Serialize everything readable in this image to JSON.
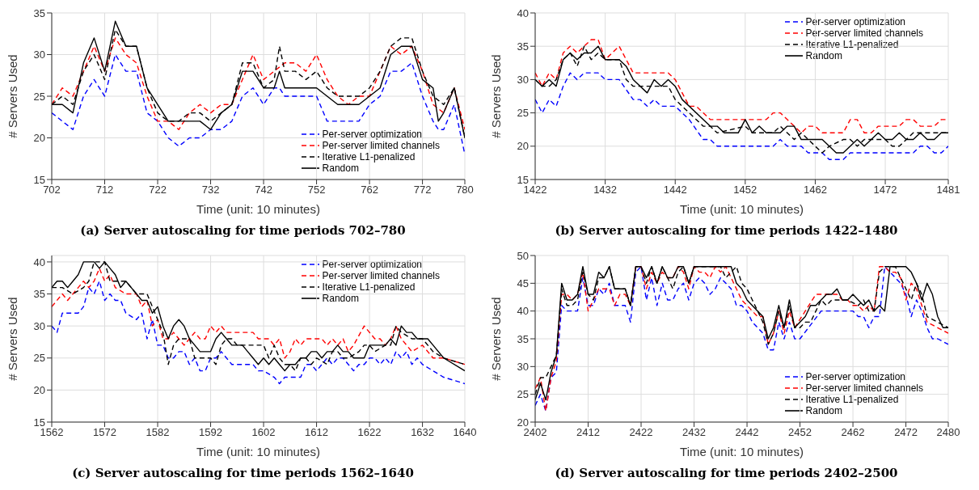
{
  "chart_data": [
    {
      "type": "line",
      "title": "(a) Server autoscaling for time periods 702–780",
      "xlabel": "Time (unit: 10 minutes)",
      "ylabel": "# Servers Used",
      "xlim": [
        702,
        780
      ],
      "xticks": [
        702,
        712,
        722,
        732,
        742,
        752,
        762,
        772,
        780
      ],
      "ylim": [
        15,
        35
      ],
      "yticks": [
        15,
        20,
        25,
        30,
        35
      ],
      "grid": true,
      "legend": "bottom right",
      "series": [
        {
          "name": "Per-server optimization",
          "color": "#0000ff",
          "line_style": "dashed",
          "x": [
            702,
            704,
            706,
            708,
            710,
            712,
            714,
            716,
            718,
            720,
            722,
            724,
            726,
            728,
            730,
            732,
            734,
            736,
            738,
            740,
            742,
            744,
            745,
            746,
            748,
            750,
            752,
            754,
            756,
            758,
            760,
            762,
            764,
            766,
            768,
            770,
            772,
            774,
            775,
            776,
            778,
            780
          ],
          "values": [
            23,
            22,
            21,
            25,
            27,
            25,
            30,
            28,
            28,
            23,
            22,
            20,
            19,
            20,
            20,
            21,
            21,
            22,
            25,
            26,
            24,
            26,
            26,
            25,
            25,
            25,
            25,
            22,
            22,
            22,
            22,
            24,
            25,
            28,
            28,
            29,
            25,
            22,
            21,
            21,
            24,
            18
          ]
        },
        {
          "name": "Per-server limited channels",
          "color": "#ff0000",
          "line_style": "dashed",
          "x": [
            702,
            704,
            706,
            708,
            710,
            712,
            714,
            716,
            718,
            720,
            722,
            724,
            726,
            728,
            730,
            732,
            734,
            736,
            738,
            740,
            742,
            744,
            746,
            748,
            750,
            752,
            754,
            756,
            758,
            760,
            762,
            764,
            766,
            768,
            770,
            772,
            774,
            776,
            778,
            780
          ],
          "values": [
            24,
            26,
            25,
            28,
            31,
            28,
            32,
            30,
            29,
            25,
            22,
            22,
            21,
            23,
            24,
            23,
            24,
            24,
            27,
            30,
            27,
            28,
            29,
            29,
            28,
            30,
            27,
            25,
            24,
            25,
            25,
            28,
            31,
            30,
            31,
            28,
            24,
            23,
            26,
            21
          ]
        },
        {
          "name": "Iterative L1-penalized",
          "color": "#000000",
          "line_style": "dashed",
          "x": [
            702,
            704,
            706,
            708,
            710,
            712,
            714,
            716,
            718,
            720,
            722,
            724,
            726,
            728,
            730,
            732,
            734,
            736,
            738,
            740,
            742,
            744,
            745,
            746,
            748,
            750,
            752,
            754,
            756,
            758,
            760,
            762,
            764,
            766,
            768,
            770,
            772,
            774,
            776,
            778,
            780
          ],
          "values": [
            24,
            25,
            24,
            28,
            30,
            27,
            33,
            31,
            31,
            26,
            23,
            22,
            22,
            23,
            23,
            22,
            23,
            24,
            29,
            29,
            26,
            27,
            31,
            28,
            28,
            27,
            28,
            26,
            25,
            25,
            25,
            26,
            28,
            31,
            32,
            32,
            28,
            25,
            24,
            26,
            20
          ]
        },
        {
          "name": "Random",
          "color": "#000000",
          "line_style": "solid",
          "x": [
            702,
            704,
            706,
            708,
            710,
            712,
            714,
            716,
            718,
            720,
            722,
            724,
            726,
            728,
            730,
            732,
            734,
            736,
            738,
            740,
            742,
            744,
            745,
            746,
            748,
            750,
            752,
            754,
            756,
            758,
            760,
            762,
            764,
            766,
            768,
            770,
            772,
            774,
            775,
            776,
            778,
            780
          ],
          "values": [
            24,
            24,
            23,
            29,
            32,
            28,
            34,
            31,
            31,
            26,
            24,
            22,
            22,
            22,
            22,
            21,
            23,
            24,
            28,
            28,
            26,
            26,
            28,
            26,
            26,
            26,
            26,
            25,
            24,
            24,
            24,
            25,
            26,
            30,
            31,
            31,
            27,
            26,
            22,
            23,
            26,
            20
          ]
        }
      ]
    },
    {
      "type": "line",
      "title": "(b) Server autoscaling for time periods 1422–1480",
      "xlabel": "Time (unit: 10 minutes)",
      "ylabel": "# Servers Used",
      "xlim": [
        1422,
        1481
      ],
      "xticks": [
        1422,
        1432,
        1442,
        1452,
        1462,
        1472,
        1481
      ],
      "ylim": [
        15,
        40
      ],
      "yticks": [
        15,
        20,
        25,
        30,
        35,
        40
      ],
      "grid": true,
      "legend": "top right",
      "series": [
        {
          "name": "Per-server optimization",
          "color": "#0000ff",
          "line_style": "dashed",
          "x": [
            1422,
            1423,
            1424,
            1425,
            1426,
            1427,
            1428,
            1429,
            1431,
            1432,
            1434,
            1436,
            1437,
            1438,
            1439,
            1440,
            1442,
            1444,
            1446,
            1447,
            1448,
            1456,
            1457,
            1458,
            1460,
            1461,
            1463,
            1464,
            1466,
            1467,
            1476,
            1477,
            1478,
            1479,
            1480,
            1481
          ],
          "values": [
            27,
            25,
            27,
            26,
            29,
            31,
            30,
            31,
            31,
            30,
            30,
            27,
            27,
            26,
            27,
            26,
            26,
            24,
            21,
            21,
            20,
            20,
            21,
            20,
            20,
            19,
            19,
            18,
            18,
            19,
            19,
            20,
            20,
            19,
            19,
            20
          ]
        },
        {
          "name": "Per-server limited channels",
          "color": "#ff0000",
          "line_style": "dashed",
          "x": [
            1422,
            1423,
            1424,
            1425,
            1426,
            1427,
            1428,
            1429,
            1430,
            1431,
            1432,
            1434,
            1435,
            1436,
            1441,
            1442,
            1443,
            1444,
            1445,
            1446,
            1447,
            1455,
            1456,
            1457,
            1458,
            1460,
            1461,
            1462,
            1463,
            1466,
            1467,
            1468,
            1469,
            1470,
            1471,
            1474,
            1475,
            1476,
            1477,
            1479,
            1480,
            1481
          ],
          "values": [
            31,
            29,
            31,
            30,
            34,
            35,
            34,
            35,
            36,
            36,
            33,
            35,
            33,
            31,
            31,
            30,
            28,
            26,
            26,
            25,
            24,
            24,
            25,
            25,
            24,
            22,
            23,
            23,
            22,
            22,
            24,
            24,
            22,
            22,
            23,
            23,
            24,
            24,
            23,
            23,
            24,
            24
          ]
        },
        {
          "name": "Iterative L1-penalized",
          "color": "#000000",
          "line_style": "dashed",
          "x": [
            1422,
            1423,
            1424,
            1425,
            1426,
            1427,
            1428,
            1429,
            1430,
            1431,
            1432,
            1434,
            1435,
            1436,
            1441,
            1442,
            1444,
            1446,
            1447,
            1448,
            1452,
            1453,
            1456,
            1457,
            1458,
            1459,
            1460,
            1461,
            1463,
            1464,
            1466,
            1467,
            1468,
            1469,
            1470,
            1472,
            1473,
            1474,
            1475,
            1476,
            1481
          ],
          "values": [
            30,
            29,
            29,
            30,
            33,
            34,
            32,
            35,
            33,
            34,
            33,
            33,
            30,
            29,
            29,
            27,
            25,
            23,
            23,
            22,
            23,
            22,
            22,
            23,
            22,
            21,
            22,
            21,
            19,
            20,
            21,
            21,
            20,
            21,
            21,
            21,
            20,
            20,
            21,
            22,
            22
          ]
        },
        {
          "name": "Random",
          "color": "#000000",
          "line_style": "solid",
          "x": [
            1422,
            1423,
            1424,
            1425,
            1426,
            1427,
            1428,
            1429,
            1430,
            1431,
            1432,
            1434,
            1435,
            1436,
            1438,
            1439,
            1440,
            1441,
            1442,
            1443,
            1447,
            1448,
            1449,
            1451,
            1452,
            1453,
            1454,
            1455,
            1457,
            1458,
            1459,
            1460,
            1463,
            1465,
            1466,
            1468,
            1469,
            1471,
            1472,
            1473,
            1474,
            1475,
            1476,
            1477,
            1478,
            1479,
            1480,
            1481
          ],
          "values": [
            30,
            29,
            30,
            29,
            33,
            34,
            33,
            34,
            34,
            35,
            33,
            33,
            32,
            30,
            28,
            30,
            29,
            30,
            29,
            27,
            23,
            23,
            22,
            22,
            24,
            22,
            23,
            22,
            22,
            23,
            23,
            21,
            21,
            19,
            19,
            21,
            20,
            22,
            21,
            21,
            22,
            21,
            21,
            22,
            21,
            21,
            22,
            22
          ]
        }
      ]
    },
    {
      "type": "line",
      "title": "(c) Server autoscaling for time periods 1562–1640",
      "xlabel": "Time (unit: 10 minutes)",
      "ylabel": "# Servers Used",
      "xlim": [
        1562,
        1640
      ],
      "xticks": [
        1562,
        1572,
        1582,
        1592,
        1602,
        1612,
        1622,
        1632,
        1640
      ],
      "ylim": [
        15,
        41
      ],
      "yticks": [
        15,
        20,
        25,
        30,
        35,
        40
      ],
      "grid": true,
      "legend": "top right",
      "series": [
        {
          "name": "Per-server optimization",
          "color": "#0000ff",
          "line_style": "dashed",
          "x": [
            1562,
            1563,
            1564,
            1567,
            1568,
            1569,
            1570,
            1571,
            1572,
            1573,
            1574,
            1575,
            1576,
            1578,
            1579,
            1580,
            1581,
            1582,
            1583,
            1584,
            1585,
            1586,
            1587,
            1588,
            1589,
            1590,
            1591,
            1592,
            1593,
            1594,
            1595,
            1596,
            1600,
            1601,
            1602,
            1604,
            1605,
            1606,
            1609,
            1610,
            1611,
            1612,
            1614,
            1615,
            1616,
            1617,
            1618,
            1619,
            1620,
            1621,
            1622,
            1623,
            1624,
            1625,
            1626,
            1627,
            1628,
            1629,
            1630,
            1631,
            1632,
            1636,
            1640
          ],
          "values": [
            30,
            29,
            32,
            32,
            33,
            36,
            35,
            37,
            34,
            35,
            34,
            34,
            32,
            31,
            32,
            28,
            31,
            27,
            27,
            25,
            25,
            26,
            26,
            24,
            25,
            23,
            23,
            25,
            25,
            26,
            25,
            24,
            24,
            23,
            23,
            22,
            21,
            22,
            22,
            24,
            24,
            23,
            25,
            24,
            25,
            25,
            24,
            23,
            24,
            24,
            25,
            25,
            24,
            25,
            24,
            26,
            25,
            26,
            24,
            25,
            24,
            22,
            21
          ]
        },
        {
          "name": "Per-server limited channels",
          "color": "#ff0000",
          "line_style": "dashed",
          "x": [
            1562,
            1564,
            1565,
            1566,
            1567,
            1568,
            1569,
            1570,
            1571,
            1572,
            1573,
            1574,
            1576,
            1577,
            1578,
            1579,
            1580,
            1581,
            1582,
            1583,
            1584,
            1585,
            1586,
            1587,
            1588,
            1589,
            1590,
            1591,
            1592,
            1593,
            1594,
            1595,
            1600,
            1601,
            1603,
            1604,
            1605,
            1606,
            1607,
            1608,
            1609,
            1610,
            1612,
            1613,
            1614,
            1615,
            1616,
            1617,
            1618,
            1619,
            1621,
            1622,
            1623,
            1624,
            1625,
            1626,
            1627,
            1628,
            1629,
            1630,
            1632,
            1634,
            1636,
            1640
          ],
          "values": [
            33,
            35,
            34,
            35,
            36,
            37,
            36,
            37,
            39,
            37,
            38,
            36,
            35,
            35,
            35,
            33,
            34,
            30,
            31,
            28,
            28,
            29,
            28,
            27,
            28,
            29,
            28,
            28,
            30,
            29,
            30,
            29,
            29,
            28,
            28,
            27,
            28,
            25,
            26,
            28,
            27,
            28,
            28,
            28,
            27,
            28,
            27,
            28,
            26,
            27,
            30,
            29,
            28,
            28,
            27,
            28,
            30,
            28,
            27,
            26,
            27,
            25,
            25,
            24
          ]
        },
        {
          "name": "Iterative L1-penalized",
          "color": "#000000",
          "line_style": "dashed",
          "x": [
            1562,
            1564,
            1566,
            1568,
            1569,
            1570,
            1572,
            1573,
            1576,
            1578,
            1580,
            1582,
            1583,
            1584,
            1585,
            1586,
            1588,
            1589,
            1592,
            1593,
            1594,
            1595,
            1596,
            1597,
            1602,
            1603,
            1604,
            1605,
            1606,
            1607,
            1608,
            1609,
            1610,
            1611,
            1612,
            1614,
            1615,
            1616,
            1617,
            1618,
            1620,
            1621,
            1622,
            1623,
            1625,
            1626,
            1627,
            1628,
            1630,
            1632,
            1634,
            1636,
            1640
          ],
          "values": [
            36,
            36,
            35,
            36,
            37,
            40,
            40,
            37,
            37,
            35,
            35,
            31,
            29,
            24,
            27,
            28,
            28,
            25,
            25,
            24,
            27,
            28,
            28,
            27,
            27,
            25,
            27,
            25,
            24,
            24,
            23,
            25,
            25,
            24,
            25,
            24,
            26,
            26,
            25,
            25,
            26,
            27,
            27,
            26,
            27,
            27,
            30,
            29,
            28,
            28,
            26,
            25,
            24
          ]
        },
        {
          "name": "Random",
          "color": "#000000",
          "line_style": "solid",
          "x": [
            1562,
            1563,
            1564,
            1565,
            1566,
            1567,
            1568,
            1570,
            1571,
            1572,
            1573,
            1574,
            1575,
            1576,
            1577,
            1578,
            1579,
            1580,
            1581,
            1582,
            1583,
            1584,
            1585,
            1586,
            1587,
            1588,
            1589,
            1590,
            1592,
            1593,
            1594,
            1595,
            1596,
            1598,
            1599,
            1600,
            1601,
            1602,
            1603,
            1604,
            1605,
            1606,
            1607,
            1608,
            1609,
            1610,
            1611,
            1612,
            1613,
            1614,
            1615,
            1616,
            1617,
            1618,
            1619,
            1621,
            1622,
            1623,
            1624,
            1625,
            1626,
            1627,
            1628,
            1629,
            1630,
            1631,
            1633,
            1634,
            1636,
            1640
          ],
          "values": [
            36,
            37,
            37,
            36,
            37,
            38,
            40,
            40,
            39,
            40,
            39,
            38,
            36,
            37,
            36,
            35,
            34,
            34,
            32,
            33,
            30,
            28,
            30,
            31,
            30,
            28,
            27,
            26,
            26,
            28,
            29,
            28,
            27,
            27,
            26,
            25,
            24,
            25,
            24,
            25,
            24,
            23,
            24,
            24,
            25,
            25,
            26,
            26,
            25,
            26,
            26,
            27,
            26,
            26,
            25,
            25,
            27,
            27,
            27,
            27,
            28,
            27,
            30,
            29,
            29,
            28,
            28,
            27,
            25,
            23
          ]
        }
      ]
    },
    {
      "type": "line",
      "title": "(d) Server autoscaling for time periods 2402–2500",
      "xlabel": "Time (unit: 10 minutes)",
      "ylabel": "# Servers Used",
      "xlim": [
        2402,
        2480
      ],
      "xticks": [
        2402,
        2412,
        2422,
        2432,
        2442,
        2452,
        2462,
        2472,
        2480
      ],
      "ylim": [
        20,
        50
      ],
      "yticks": [
        20,
        25,
        30,
        35,
        40,
        45,
        50
      ],
      "grid": true,
      "legend": "bottom right",
      "series": [
        {
          "name": "Per-server optimization",
          "color": "#0000ff",
          "line_style": "dashed",
          "x": [
            2402,
            2403,
            2404,
            2405,
            2406,
            2407,
            2408,
            2410,
            2411,
            2412,
            2413,
            2414,
            2415,
            2416,
            2417,
            2419,
            2420,
            2421,
            2422,
            2423,
            2424,
            2425,
            2426,
            2427,
            2428,
            2429,
            2430,
            2431,
            2432,
            2433,
            2434,
            2435,
            2436,
            2437,
            2438,
            2439,
            2440,
            2441,
            2442,
            2443,
            2444,
            2445,
            2446,
            2447,
            2448,
            2449,
            2450,
            2451,
            2452,
            2456,
            2462,
            2463,
            2464,
            2465,
            2466,
            2467,
            2468,
            2469,
            2470,
            2471,
            2472,
            2473,
            2474,
            2475,
            2476,
            2477,
            2478,
            2480
          ],
          "values": [
            23,
            25,
            22,
            28,
            29,
            41,
            40,
            40,
            46,
            41,
            41,
            44,
            43,
            45,
            41,
            41,
            38,
            47,
            48,
            42,
            46,
            41,
            45,
            42,
            42,
            44,
            45,
            42,
            45,
            46,
            45,
            43,
            44,
            46,
            45,
            44,
            41,
            41,
            40,
            38,
            37,
            36,
            33,
            33,
            38,
            35,
            38,
            35,
            35,
            40,
            40,
            39,
            39,
            37,
            39,
            39,
            48,
            47,
            46,
            45,
            43,
            39,
            42,
            40,
            37,
            35,
            35,
            34
          ]
        },
        {
          "name": "Per-server limited channels",
          "color": "#ff0000",
          "line_style": "dashed",
          "x": [
            2402,
            2403,
            2404,
            2405,
            2406,
            2407,
            2408,
            2409,
            2410,
            2411,
            2412,
            2413,
            2414,
            2415,
            2416,
            2417,
            2418,
            2419,
            2420,
            2421,
            2422,
            2423,
            2424,
            2425,
            2426,
            2427,
            2428,
            2429,
            2430,
            2431,
            2432,
            2433,
            2434,
            2435,
            2436,
            2437,
            2438,
            2439,
            2440,
            2441,
            2443,
            2444,
            2445,
            2446,
            2447,
            2448,
            2449,
            2450,
            2451,
            2453,
            2455,
            2457,
            2459,
            2460,
            2461,
            2462,
            2463,
            2464,
            2465,
            2466,
            2467,
            2468,
            2469,
            2470,
            2471,
            2472,
            2473,
            2474,
            2475,
            2476,
            2480
          ],
          "values": [
            26,
            28,
            22,
            28,
            31,
            43,
            43,
            42,
            43,
            47,
            40,
            42,
            44,
            44,
            44,
            41,
            43,
            43,
            41,
            48,
            48,
            44,
            47,
            45,
            47,
            46,
            46,
            48,
            47,
            44,
            48,
            47,
            47,
            46,
            48,
            47,
            48,
            46,
            44,
            42,
            40,
            39,
            39,
            34,
            36,
            40,
            36,
            40,
            37,
            40,
            43,
            43,
            43,
            42,
            42,
            41,
            41,
            40,
            41,
            40,
            48,
            48,
            47,
            47,
            46,
            42,
            45,
            44,
            41,
            38,
            36
          ]
        },
        {
          "name": "Iterative L1-penalized",
          "color": "#000000",
          "line_style": "dashed",
          "x": [
            2402,
            2403,
            2404,
            2405,
            2406,
            2407,
            2408,
            2409,
            2410,
            2411,
            2412,
            2413,
            2414,
            2415,
            2416,
            2417,
            2419,
            2420,
            2421,
            2422,
            2423,
            2424,
            2425,
            2426,
            2427,
            2428,
            2429,
            2430,
            2431,
            2432,
            2437,
            2438,
            2439,
            2440,
            2441,
            2442,
            2443,
            2444,
            2445,
            2446,
            2447,
            2448,
            2449,
            2450,
            2451,
            2452,
            2453,
            2454,
            2456,
            2457,
            2458,
            2461,
            2463,
            2464,
            2465,
            2466,
            2467,
            2468,
            2470,
            2471,
            2472,
            2473,
            2474,
            2475,
            2476,
            2480
          ],
          "values": [
            25,
            28,
            28,
            30,
            32,
            44,
            41,
            41,
            42,
            47,
            43,
            42,
            46,
            46,
            48,
            44,
            44,
            41,
            48,
            48,
            45,
            48,
            45,
            48,
            46,
            44,
            47,
            48,
            45,
            48,
            48,
            46,
            47,
            48,
            45,
            44,
            42,
            40,
            38,
            34,
            36,
            40,
            37,
            41,
            37,
            37,
            38,
            38,
            42,
            41,
            42,
            42,
            41,
            42,
            40,
            40,
            47,
            48,
            48,
            46,
            44,
            42,
            45,
            43,
            39,
            37
          ]
        },
        {
          "name": "Random",
          "color": "#000000",
          "line_style": "solid",
          "x": [
            2402,
            2403,
            2404,
            2405,
            2406,
            2407,
            2408,
            2409,
            2410,
            2411,
            2412,
            2413,
            2414,
            2415,
            2416,
            2417,
            2419,
            2420,
            2421,
            2422,
            2423,
            2424,
            2425,
            2426,
            2427,
            2428,
            2429,
            2430,
            2431,
            2432,
            2439,
            2440,
            2441,
            2442,
            2444,
            2445,
            2446,
            2447,
            2448,
            2449,
            2450,
            2451,
            2453,
            2454,
            2455,
            2457,
            2458,
            2459,
            2460,
            2461,
            2462,
            2463,
            2464,
            2465,
            2466,
            2467,
            2468,
            2469,
            2472,
            2473,
            2474,
            2475,
            2476,
            2477,
            2478,
            2479,
            2480
          ],
          "values": [
            24,
            27,
            24,
            29,
            32,
            45,
            42,
            42,
            43,
            48,
            43,
            43,
            47,
            46,
            48,
            44,
            44,
            41,
            48,
            48,
            46,
            48,
            45,
            48,
            46,
            46,
            48,
            48,
            45,
            48,
            48,
            45,
            44,
            42,
            40,
            39,
            35,
            37,
            41,
            37,
            42,
            37,
            39,
            41,
            41,
            43,
            43,
            44,
            42,
            42,
            43,
            42,
            41,
            42,
            40,
            41,
            40,
            48,
            48,
            47,
            45,
            42,
            45,
            43,
            39,
            37,
            37
          ]
        }
      ]
    }
  ]
}
